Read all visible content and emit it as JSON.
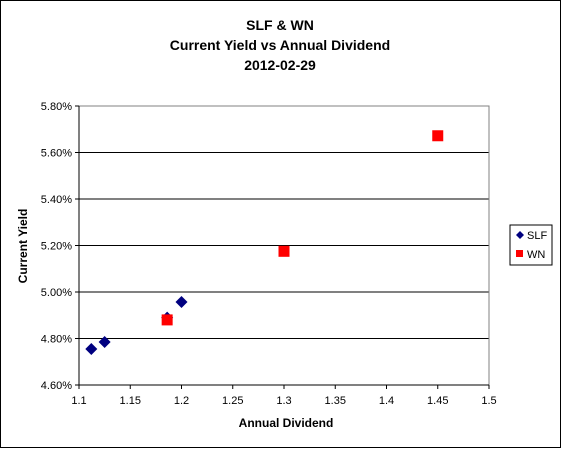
{
  "chart_data": {
    "type": "scatter",
    "title": [
      "SLF & WN",
      "Current Yield vs Annual Dividend",
      "2012-02-29"
    ],
    "xlabel": "Annual Dividend",
    "ylabel": "Current Yield",
    "xlim": [
      1.1,
      1.5
    ],
    "ylim": [
      4.6,
      5.8
    ],
    "x_ticks": [
      "1.1",
      "1.15",
      "1.2",
      "1.25",
      "1.3",
      "1.35",
      "1.4",
      "1.45",
      "1.5"
    ],
    "y_ticks": [
      "4.60%",
      "4.80%",
      "5.00%",
      "5.20%",
      "5.40%",
      "5.60%",
      "5.80%"
    ],
    "grid": "horizontal",
    "legend_position": "right",
    "series": [
      {
        "name": "SLF",
        "marker": "diamond",
        "color": "#000080",
        "points": [
          {
            "x": 1.112,
            "y": 4.755
          },
          {
            "x": 1.125,
            "y": 4.785
          },
          {
            "x": 1.186,
            "y": 4.89
          },
          {
            "x": 1.2,
            "y": 4.957
          }
        ]
      },
      {
        "name": "WN",
        "marker": "square",
        "color": "#ff0000",
        "points": [
          {
            "x": 1.186,
            "y": 4.88
          },
          {
            "x": 1.3,
            "y": 5.175
          },
          {
            "x": 1.45,
            "y": 5.672
          }
        ]
      }
    ]
  }
}
